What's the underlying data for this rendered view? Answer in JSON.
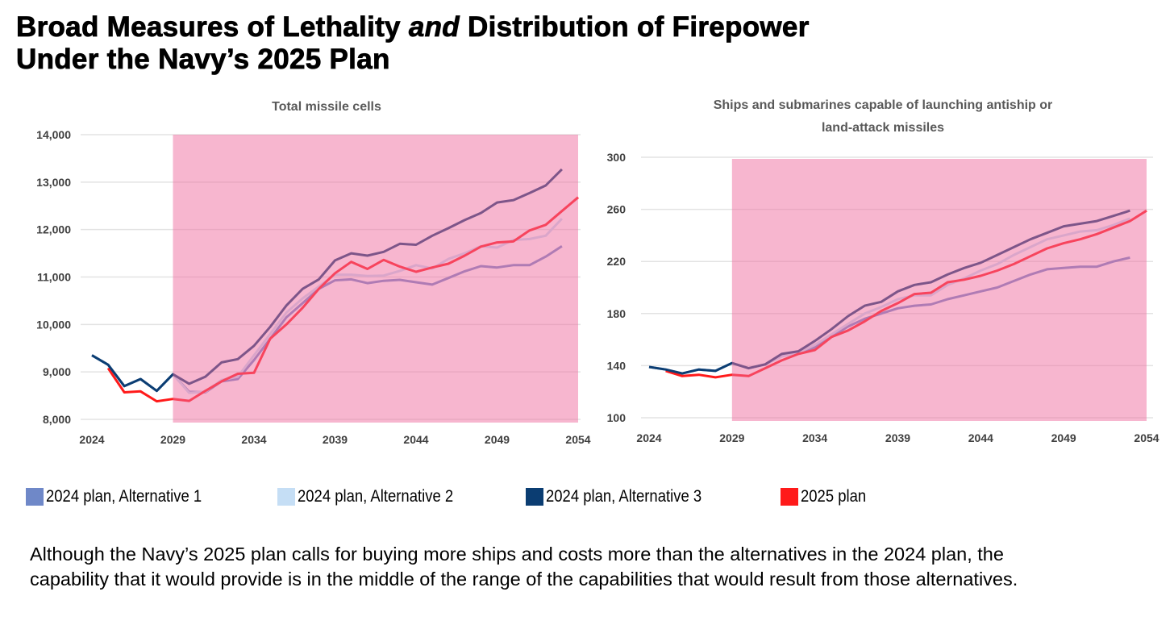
{
  "title": {
    "line1_a": "Broad Measures of Lethality ",
    "line1_em": "and",
    "line1_b": " Distribution of Firepower",
    "line2": "Under the Navy’s 2025 Plan"
  },
  "colors": {
    "alt1": "#6f88c8",
    "alt2": "#c5def5",
    "alt3": "#0b3d72",
    "plan2025": "#ff1a1a",
    "shade": "#f06ea0",
    "grid": "#e3e3e3"
  },
  "legend": [
    {
      "key": "alt1",
      "label": "2024 plan, Alternative 1"
    },
    {
      "key": "alt2",
      "label": "2024 plan, Alternative 2"
    },
    {
      "key": "alt3",
      "label": "2024 plan, Alternative 3"
    },
    {
      "key": "plan2025",
      "label": "2025 plan"
    }
  ],
  "caption": "Although the Navy’s 2025 plan calls for buying more ships and costs more than the alternatives in the 2024 plan, the capability that it would provide is in the middle of the range of the capabilities that would result from those alternatives.",
  "chart_data": [
    {
      "type": "line",
      "title": [
        "Total missile cells"
      ],
      "xlim": [
        2024,
        2054
      ],
      "ylim": [
        8000,
        14000
      ],
      "xticks": [
        2024,
        2029,
        2034,
        2039,
        2044,
        2049,
        2054
      ],
      "yticks": [
        8000,
        9000,
        10000,
        11000,
        12000,
        13000,
        14000
      ],
      "ytick_labels": [
        "8,000",
        "9,000",
        "10,000",
        "11,000",
        "12,000",
        "13,000",
        "14,000"
      ],
      "shaded_region": [
        2029,
        2054
      ],
      "grid": true,
      "series": [
        {
          "key": "alt1",
          "name": "2024 plan, Alternative 1",
          "start": 2024,
          "values": [
            9350,
            9150,
            8700,
            8850,
            8600,
            8950,
            8580,
            8570,
            8800,
            8850,
            9250,
            9700,
            10150,
            10450,
            10750,
            10930,
            10950,
            10870,
            10920,
            10940,
            10890,
            10840,
            10980,
            11120,
            11230,
            11200,
            11250,
            11250,
            11430,
            11650
          ]
        },
        {
          "key": "alt2",
          "name": "2024 plan, Alternative 2",
          "start": 2024,
          "values": [
            9350,
            9150,
            8700,
            8850,
            8600,
            8950,
            8560,
            8580,
            8830,
            8900,
            9350,
            9800,
            10250,
            10550,
            10800,
            11050,
            11050,
            11020,
            11030,
            11130,
            11250,
            11180,
            11380,
            11500,
            11650,
            11620,
            11780,
            11800,
            11870,
            12230
          ]
        },
        {
          "key": "alt3",
          "name": "2024 plan, Alternative 3",
          "start": 2024,
          "values": [
            9350,
            9150,
            8700,
            8850,
            8600,
            8950,
            8750,
            8900,
            9200,
            9270,
            9550,
            9950,
            10400,
            10750,
            10950,
            11350,
            11500,
            11450,
            11530,
            11700,
            11680,
            11870,
            12030,
            12200,
            12350,
            12570,
            12620,
            12770,
            12930,
            13270
          ]
        },
        {
          "key": "plan2025",
          "name": "2025 plan",
          "start": 2025,
          "values": [
            9080,
            8570,
            8590,
            8380,
            8430,
            8390,
            8600,
            8800,
            8960,
            8980,
            9700,
            10000,
            10350,
            10750,
            11080,
            11320,
            11170,
            11360,
            11220,
            11110,
            11200,
            11280,
            11450,
            11640,
            11730,
            11750,
            11980,
            12100,
            12390,
            12680
          ]
        }
      ]
    },
    {
      "type": "line",
      "title": [
        "Ships and submarines capable of launching antiship or",
        "land-attack missiles"
      ],
      "xlim": [
        2024,
        2054
      ],
      "ylim": [
        100,
        300
      ],
      "xticks": [
        2024,
        2029,
        2034,
        2039,
        2044,
        2049,
        2054
      ],
      "yticks": [
        100,
        140,
        180,
        220,
        260,
        300
      ],
      "ytick_labels": [
        "100",
        "140",
        "180",
        "220",
        "260",
        "300"
      ],
      "shaded_region": [
        2029,
        2054
      ],
      "grid": true,
      "series": [
        {
          "key": "alt1",
          "name": "2024 plan, Alternative 1",
          "start": 2024,
          "values": [
            139,
            137,
            134,
            137,
            136,
            142,
            138,
            141,
            148,
            150,
            154,
            162,
            170,
            176,
            180,
            184,
            186,
            187,
            191,
            194,
            197,
            200,
            205,
            210,
            214,
            215,
            216,
            216,
            220,
            223
          ]
        },
        {
          "key": "alt2",
          "name": "2024 plan, Alternative 2",
          "start": 2024,
          "values": [
            139,
            137,
            134,
            137,
            136,
            142,
            138,
            141,
            147,
            150,
            156,
            164,
            172,
            180,
            185,
            191,
            194,
            194,
            202,
            207,
            213,
            218,
            225,
            231,
            237,
            240,
            243,
            244,
            248,
            253
          ]
        },
        {
          "key": "alt3",
          "name": "2024 plan, Alternative 3",
          "start": 2024,
          "values": [
            139,
            137,
            134,
            137,
            136,
            142,
            138,
            141,
            149,
            151,
            159,
            168,
            178,
            186,
            189,
            197,
            202,
            204,
            210,
            215,
            219,
            225,
            231,
            237,
            242,
            247,
            249,
            251,
            255,
            259
          ]
        },
        {
          "key": "plan2025",
          "name": "2025 plan",
          "start": 2025,
          "values": [
            136,
            132,
            133,
            131,
            133,
            132,
            138,
            144,
            149,
            152,
            162,
            167,
            174,
            182,
            188,
            195,
            196,
            204,
            206,
            209,
            213,
            218,
            224,
            230,
            234,
            237,
            241,
            246,
            251,
            259
          ]
        }
      ]
    }
  ]
}
